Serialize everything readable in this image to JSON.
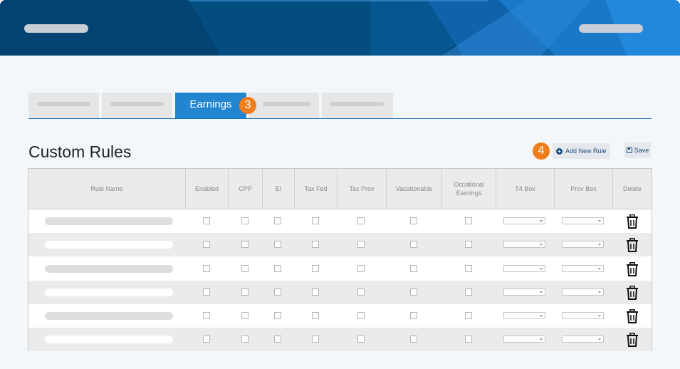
{
  "header": {
    "brand_color": "#034371",
    "accent_color": "#1e87d8"
  },
  "tabs": [
    {
      "label": "",
      "active": false
    },
    {
      "label": "",
      "active": false
    },
    {
      "label": "Earnings",
      "active": true
    },
    {
      "label": "",
      "active": false
    },
    {
      "label": "",
      "active": false
    }
  ],
  "callouts": {
    "tab_step": "3",
    "add_rule_step": "4"
  },
  "page": {
    "title": "Custom Rules"
  },
  "toolbar": {
    "add_rule_label": "Add New Rule",
    "save_label": "Save"
  },
  "table": {
    "columns": [
      "Rule Name",
      "Enabled",
      "CPP",
      "EI",
      "Tax Fed",
      "Tax Prov",
      "Vacationable",
      "Occational Earnings",
      "T4 Box",
      "Prov Box",
      "Delete"
    ],
    "row_count": 6
  },
  "colors": {
    "active_tab": "#2185d0",
    "badge": "#f07d1b"
  },
  "icons": [
    "plus-circle-icon",
    "save-disk-icon",
    "trash-icon",
    "dropdown-arrow-icon"
  ]
}
